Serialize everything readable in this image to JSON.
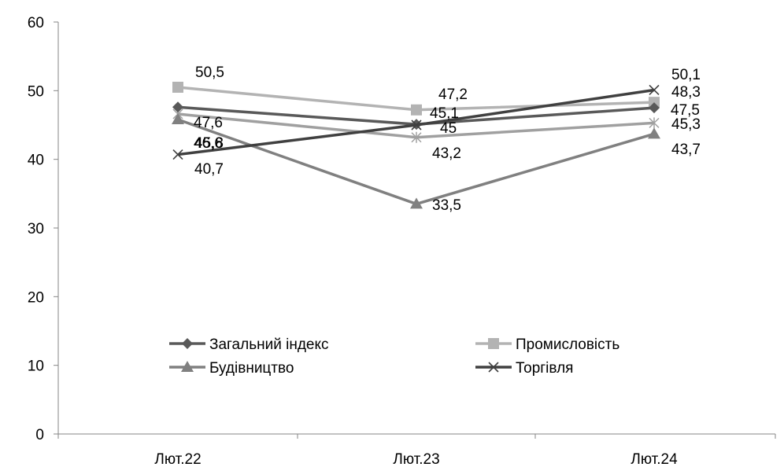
{
  "chart_data": {
    "type": "line",
    "categories": [
      "Лют.22",
      "Лют.23",
      "Лют.24"
    ],
    "ylim": [
      0,
      60
    ],
    "yticks": [
      0,
      10,
      20,
      30,
      40,
      50,
      60
    ],
    "grid": false,
    "legend_position": "bottom-center, inside plot",
    "series": [
      {
        "name": "Загальний індекс",
        "values": [
          47.6,
          45.1,
          47.5
        ],
        "labels": [
          "47,6",
          "45,1",
          "47,5"
        ],
        "color": "#595959",
        "marker": "diamond"
      },
      {
        "name": "Промисловість",
        "values": [
          50.5,
          47.2,
          48.3
        ],
        "labels": [
          "50,5",
          "47,2",
          "48,3"
        ],
        "color": "#b3b3b3",
        "marker": "square"
      },
      {
        "name": "Будівництво",
        "values": [
          45.8,
          33.5,
          43.7
        ],
        "labels": [
          "45,8",
          "33,5",
          "43,7"
        ],
        "color": "#808080",
        "marker": "triangle"
      },
      {
        "name": "Торгівля",
        "values": [
          40.7,
          45.0,
          50.1
        ],
        "labels": [
          "40,7",
          "45",
          "50,1"
        ],
        "color": "#404040",
        "marker": "x"
      },
      {
        "name": "",
        "values": [
          46.6,
          43.2,
          45.3
        ],
        "labels": [
          "46,6",
          "43,2",
          "45,3"
        ],
        "color": "#a0a0a0",
        "marker": "star"
      }
    ]
  }
}
